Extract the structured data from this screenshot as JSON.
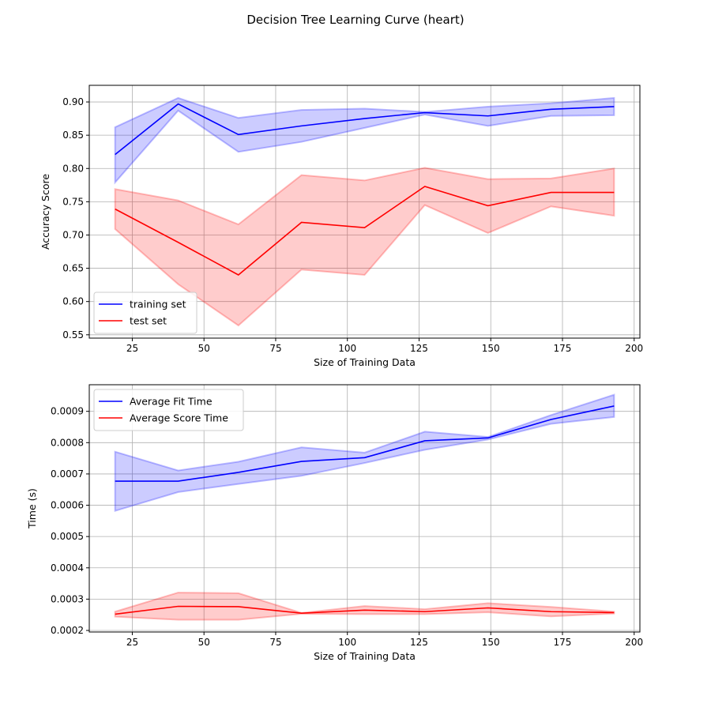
{
  "figure_title": "Decision Tree Learning Curve (heart)",
  "chart_data": [
    {
      "type": "line",
      "xlabel": "Size of Training Data",
      "ylabel": "Accuracy Score",
      "xlim": [
        10,
        202
      ],
      "ylim": [
        0.545,
        0.925
      ],
      "xticks": [
        25,
        50,
        75,
        100,
        125,
        150,
        175,
        200
      ],
      "yticks": [
        0.55,
        0.6,
        0.65,
        0.7,
        0.75,
        0.8,
        0.85,
        0.9
      ],
      "ytick_labels": [
        "0.55",
        "0.60",
        "0.65",
        "0.70",
        "0.75",
        "0.80",
        "0.85",
        "0.90"
      ],
      "grid": true,
      "legend_position": "lower-left",
      "x": [
        19,
        41,
        62,
        84,
        106,
        127,
        149,
        171,
        193
      ],
      "series": [
        {
          "name": "training set",
          "color": "#0000ff",
          "band_color": "#0000ff",
          "mean": [
            0.821,
            0.897,
            0.851,
            0.864,
            0.875,
            0.884,
            0.879,
            0.889,
            0.893
          ],
          "lower": [
            0.779,
            0.887,
            0.825,
            0.84,
            0.861,
            0.881,
            0.864,
            0.879,
            0.88
          ],
          "upper": [
            0.862,
            0.906,
            0.876,
            0.888,
            0.89,
            0.885,
            0.893,
            0.898,
            0.906
          ]
        },
        {
          "name": "test set",
          "color": "#ff0000",
          "band_color": "#ff0000",
          "mean": [
            0.739,
            0.689,
            0.64,
            0.719,
            0.711,
            0.773,
            0.744,
            0.764,
            0.764
          ],
          "lower": [
            0.709,
            0.626,
            0.564,
            0.648,
            0.64,
            0.745,
            0.703,
            0.743,
            0.729
          ],
          "upper": [
            0.769,
            0.752,
            0.716,
            0.79,
            0.782,
            0.801,
            0.784,
            0.785,
            0.8
          ]
        }
      ]
    },
    {
      "type": "line",
      "xlabel": "Size of Training Data",
      "ylabel": "Time (s)",
      "xlim": [
        10,
        202
      ],
      "ylim": [
        0.000195,
        0.000985
      ],
      "xticks": [
        25,
        50,
        75,
        100,
        125,
        150,
        175,
        200
      ],
      "yticks": [
        0.0002,
        0.0003,
        0.0004,
        0.0005,
        0.0006,
        0.0007,
        0.0008,
        0.0009
      ],
      "ytick_labels": [
        "0.0002",
        "0.0003",
        "0.0004",
        "0.0005",
        "0.0006",
        "0.0007",
        "0.0008",
        "0.0009"
      ],
      "grid": true,
      "legend_position": "upper-left",
      "x": [
        19,
        41,
        62,
        84,
        106,
        127,
        149,
        171,
        193
      ],
      "series": [
        {
          "name": "Average Fit Time",
          "color": "#0000ff",
          "band_color": "#0000ff",
          "mean": [
            0.000677,
            0.000677,
            0.000705,
            0.00074,
            0.000752,
            0.000806,
            0.000815,
            0.000874,
            0.000917
          ],
          "lower": [
            0.000582,
            0.000642,
            0.000668,
            0.000694,
            0.000735,
            0.000777,
            0.00081,
            0.00086,
            0.000882
          ],
          "upper": [
            0.000771,
            0.000711,
            0.000739,
            0.000785,
            0.000768,
            0.000835,
            0.000818,
            0.000888,
            0.000953
          ]
        },
        {
          "name": "Average Score Time",
          "color": "#ff0000",
          "band_color": "#ff0000",
          "mean": [
            0.000252,
            0.000277,
            0.000276,
            0.000255,
            0.000265,
            0.00026,
            0.000272,
            0.00026,
            0.000257
          ],
          "lower": [
            0.000244,
            0.000234,
            0.000234,
            0.000253,
            0.000252,
            0.000252,
            0.000258,
            0.000245,
            0.000254
          ],
          "upper": [
            0.00026,
            0.000321,
            0.000319,
            0.000256,
            0.000278,
            0.000268,
            0.000287,
            0.000275,
            0.00026
          ]
        }
      ]
    }
  ]
}
